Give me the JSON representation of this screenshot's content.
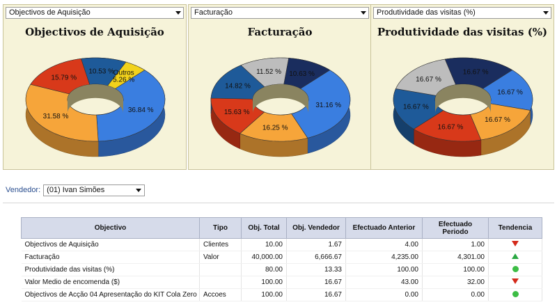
{
  "panels": [
    {
      "select_value": "Objectivos de Aquisição",
      "title": "Objectivos de Aquisição",
      "slices": [
        {
          "label": "36.84 %",
          "value": 36.84,
          "color": "#3a7ee0"
        },
        {
          "label": "31.58 %",
          "value": 31.58,
          "color": "#f6a53a"
        },
        {
          "label": "15.79 %",
          "value": 15.79,
          "color": "#d8391a"
        },
        {
          "label": "10.53 %",
          "value": 10.53,
          "color": "#1e5a99"
        },
        {
          "label": "Outros\n5.26 %",
          "value": 5.26,
          "color": "#f2d21b"
        }
      ]
    },
    {
      "select_value": "Facturação",
      "title": "Facturação",
      "slices": [
        {
          "label": "31.16 %",
          "value": 31.16,
          "color": "#3a7ee0"
        },
        {
          "label": "16.25 %",
          "value": 16.25,
          "color": "#f6a53a"
        },
        {
          "label": "15.63 %",
          "value": 15.63,
          "color": "#d8391a"
        },
        {
          "label": "14.82 %",
          "value": 14.82,
          "color": "#1e5a99"
        },
        {
          "label": "11.52 %",
          "value": 11.52,
          "color": "#bdbdbd"
        },
        {
          "label": "10.63 %",
          "value": 10.63,
          "color": "#1a2d5e"
        }
      ]
    },
    {
      "select_value": "Produtividade das visitas (%)",
      "title": "Produtividade das visitas (%)",
      "slices": [
        {
          "label": "16.67 %",
          "value": 16.67,
          "color": "#3a7ee0"
        },
        {
          "label": "16.67 %",
          "value": 16.67,
          "color": "#f6a53a"
        },
        {
          "label": "16.67 %",
          "value": 16.67,
          "color": "#d8391a"
        },
        {
          "label": "16.67 %",
          "value": 16.67,
          "color": "#1e5a99"
        },
        {
          "label": "16.67 %",
          "value": 16.67,
          "color": "#bdbdbd"
        },
        {
          "label": "16.67 %",
          "value": 16.67,
          "color": "#1a2d5e"
        }
      ]
    }
  ],
  "vendor": {
    "label": "Vendedor:",
    "value": "(01) Ivan Simões"
  },
  "table": {
    "headers": [
      "Objectivo",
      "Tipo",
      "Obj. Total",
      "Obj. Vendedor",
      "Efectuado Anterior",
      "Efectuado\nPeriodo",
      "Tendencia"
    ],
    "rows": [
      {
        "objectivo": "Objectivos de Aquisição",
        "tipo": "Clientes",
        "obj_total": "10.00",
        "obj_vendedor": "1.67",
        "anterior": "4.00",
        "periodo": "1.00",
        "trend": "down"
      },
      {
        "objectivo": "Facturação",
        "tipo": "Valor",
        "obj_total": "40,000.00",
        "obj_vendedor": "6,666.67",
        "anterior": "4,235.00",
        "periodo": "4,301.00",
        "trend": "up"
      },
      {
        "objectivo": "Produtividade das visitas (%)",
        "tipo": "",
        "obj_total": "80.00",
        "obj_vendedor": "13.33",
        "anterior": "100.00",
        "periodo": "100.00",
        "trend": "same"
      },
      {
        "objectivo": "Valor Medio de encomenda ($)",
        "tipo": "",
        "obj_total": "100.00",
        "obj_vendedor": "16.67",
        "anterior": "43.00",
        "periodo": "32.00",
        "trend": "down"
      },
      {
        "objectivo": "Objectivos de Acção 04 Apresentação do KIT Cola Zero",
        "tipo": "Accoes",
        "obj_total": "100.00",
        "obj_vendedor": "16.67",
        "anterior": "0.00",
        "periodo": "0.00",
        "trend": "same"
      }
    ]
  },
  "colors": {
    "panel_bg": "#f6f3d9",
    "header_bg": "#d6dbea",
    "trend_down": "#d42a1b",
    "trend_up": "#2aa843",
    "trend_same": "#3cbd45"
  }
}
